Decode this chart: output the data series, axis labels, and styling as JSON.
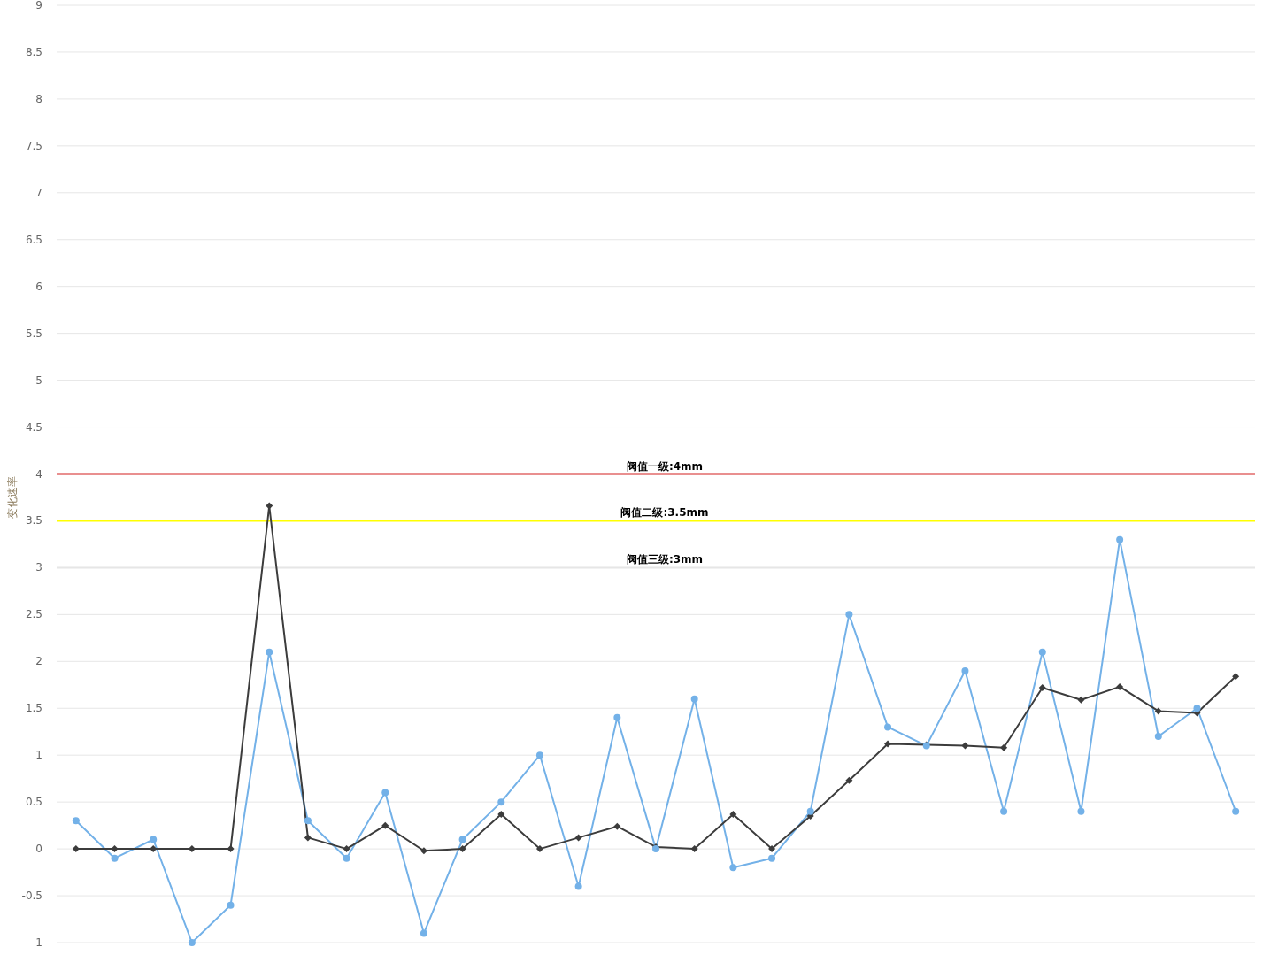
{
  "chart_data": {
    "type": "line",
    "ylabel": "变化速率",
    "categories": [
      null,
      null,
      null,
      null,
      null,
      null,
      null,
      null,
      null,
      null,
      null,
      null,
      null,
      null,
      null,
      null,
      null,
      null,
      null,
      null,
      null,
      null,
      null,
      null,
      null,
      null,
      null,
      null,
      null,
      null,
      null
    ],
    "series": [
      {
        "color": "#73b1e8",
        "marker": "circle",
        "values": [
          0.3,
          -0.1,
          0.1,
          -1,
          -0.6,
          2.1,
          0.3,
          -0.1,
          0.6,
          -0.9,
          0.1,
          0.5,
          1.0,
          -0.4,
          1.4,
          0,
          1.6,
          -0.2,
          -0.1,
          0.4,
          2.5,
          1.3,
          1.1,
          1.9,
          0.4,
          2.1,
          0.4,
          3.3,
          1.2,
          1.5,
          0.4
        ]
      },
      {
        "color": "#3c3c3c",
        "marker": "diamond",
        "values": [
          0,
          0,
          0,
          0,
          0,
          3.66,
          0.12,
          0,
          0.25,
          -0.02,
          0,
          0.37,
          0,
          0.12,
          0.24,
          0.02,
          0,
          0.37,
          0,
          0.35,
          0.73,
          1.12,
          1.11,
          1.1,
          1.08,
          1.72,
          1.59,
          1.73,
          1.47,
          1.45,
          1.84
        ]
      }
    ],
    "ylim": [
      -1,
      9
    ],
    "yticks": [
      -1,
      -0.5,
      0,
      0.5,
      1,
      1.5,
      2,
      2.5,
      3,
      3.5,
      4,
      4.5,
      5,
      5.5,
      6,
      6.5,
      7,
      7.5,
      8,
      8.5,
      9
    ],
    "grid": "y",
    "line_style": "solid",
    "tick_labels": "y",
    "ref_lines": [
      {
        "axis": "y",
        "value": 4,
        "label": "阀值一级:4mm",
        "color": "#d42020"
      },
      {
        "axis": "y",
        "value": 3.5,
        "label": "阀值二级:3.5mm",
        "color": "#ffff00"
      },
      {
        "axis": "y",
        "value": 3,
        "label": "阀值三级:3mm",
        "color": "#e6e6e6"
      }
    ]
  }
}
